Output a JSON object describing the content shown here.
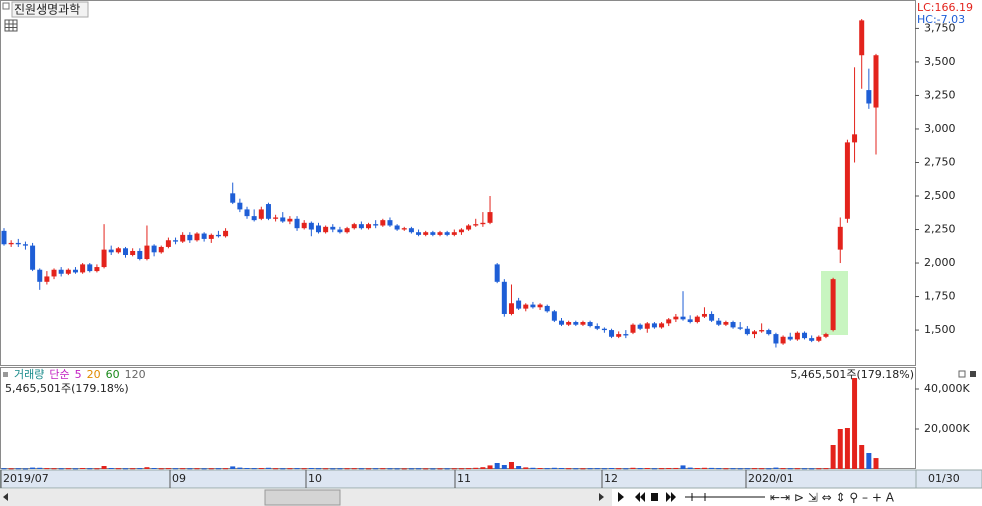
{
  "chart_data": {
    "type": "candlestick",
    "title": "진원생명과학",
    "lc_label": "LC:166.19",
    "hc_label": "HC:-7.03",
    "up_color": "#e3231c",
    "down_color": "#1e5ed6",
    "open": [
      2240,
      2140,
      2150,
      2140,
      2130,
      1950,
      1860,
      1900,
      1950,
      1920,
      1950,
      1930,
      1990,
      1940,
      1970,
      2100,
      2080,
      2110,
      2060,
      2090,
      2030,
      2130,
      2080,
      2120,
      2170,
      2160,
      2210,
      2170,
      2220,
      2180,
      2210,
      2200,
      2520,
      2450,
      2400,
      2350,
      2330,
      2440,
      2330,
      2340,
      2310,
      2330,
      2260,
      2300,
      2280,
      2230,
      2270,
      2250,
      2230,
      2260,
      2290,
      2260,
      2290,
      2280,
      2320,
      2280,
      2250,
      2260,
      2230,
      2210,
      2230,
      2210,
      2230,
      2210,
      2230,
      2250,
      2280,
      2290,
      2300,
      1990,
      1860,
      1620,
      1720,
      1660,
      1690,
      1670,
      1680,
      1640,
      1570,
      1540,
      1560,
      1540,
      1560,
      1530,
      1510,
      1500,
      1450,
      1470,
      1480,
      1540,
      1510,
      1550,
      1520,
      1550,
      1580,
      1600,
      1580,
      1560,
      1600,
      1620,
      1570,
      1540,
      1560,
      1520,
      1510,
      1470,
      1490,
      1500,
      1470,
      1400,
      1450,
      1430,
      1480,
      1440,
      1420,
      1450,
      1500,
      2100,
      2330,
      2900,
      3550,
      3290,
      3160
    ],
    "high": [
      2260,
      2170,
      2180,
      2160,
      2150,
      1960,
      1940,
      1960,
      1970,
      1960,
      1970,
      2000,
      2000,
      1990,
      2290,
      2130,
      2120,
      2120,
      2110,
      2110,
      2280,
      2140,
      2130,
      2190,
      2190,
      2230,
      2230,
      2230,
      2230,
      2220,
      2240,
      2260,
      2600,
      2480,
      2420,
      2400,
      2420,
      2450,
      2360,
      2380,
      2350,
      2350,
      2320,
      2310,
      2300,
      2280,
      2290,
      2270,
      2270,
      2300,
      2310,
      2300,
      2320,
      2330,
      2340,
      2290,
      2270,
      2270,
      2250,
      2240,
      2240,
      2240,
      2240,
      2250,
      2260,
      2290,
      2330,
      2380,
      2500,
      2000,
      1880,
      1840,
      1740,
      1700,
      1710,
      1700,
      1690,
      1650,
      1590,
      1570,
      1570,
      1570,
      1570,
      1550,
      1520,
      1510,
      1490,
      1500,
      1550,
      1550,
      1560,
      1560,
      1560,
      1590,
      1620,
      1790,
      1610,
      1610,
      1670,
      1640,
      1590,
      1570,
      1570,
      1560,
      1530,
      1500,
      1550,
      1510,
      1480,
      1460,
      1480,
      1490,
      1490,
      1460,
      1460,
      1480,
      1890,
      2340,
      2920,
      3460,
      3820,
      3450,
      3560
    ],
    "low": [
      2130,
      2120,
      2120,
      2100,
      1940,
      1800,
      1840,
      1880,
      1900,
      1910,
      1920,
      1920,
      1930,
      1930,
      1960,
      2060,
      2070,
      2040,
      2050,
      2020,
      2020,
      2050,
      2070,
      2110,
      2140,
      2150,
      2150,
      2160,
      2160,
      2150,
      2190,
      2190,
      2440,
      2380,
      2330,
      2310,
      2320,
      2320,
      2310,
      2300,
      2290,
      2240,
      2250,
      2200,
      2220,
      2220,
      2230,
      2220,
      2220,
      2250,
      2250,
      2250,
      2260,
      2270,
      2270,
      2240,
      2240,
      2220,
      2200,
      2200,
      2200,
      2200,
      2200,
      2200,
      2210,
      2240,
      2270,
      2270,
      2290,
      1850,
      1600,
      1610,
      1650,
      1640,
      1660,
      1650,
      1630,
      1560,
      1530,
      1530,
      1530,
      1530,
      1520,
      1500,
      1480,
      1440,
      1440,
      1440,
      1470,
      1500,
      1480,
      1510,
      1510,
      1530,
      1560,
      1570,
      1550,
      1550,
      1590,
      1560,
      1530,
      1530,
      1510,
      1500,
      1460,
      1440,
      1480,
      1460,
      1370,
      1390,
      1420,
      1420,
      1430,
      1410,
      1410,
      1440,
      1490,
      2000,
      2300,
      2750,
      3300,
      3150,
      2810
    ],
    "close": [
      2140,
      2150,
      2140,
      2130,
      1950,
      1860,
      1900,
      1950,
      1920,
      1950,
      1930,
      1990,
      1940,
      1970,
      2100,
      2080,
      2110,
      2060,
      2090,
      2030,
      2130,
      2080,
      2120,
      2170,
      2160,
      2210,
      2170,
      2220,
      2180,
      2210,
      2200,
      2240,
      2450,
      2400,
      2350,
      2320,
      2400,
      2330,
      2340,
      2310,
      2330,
      2260,
      2300,
      2250,
      2230,
      2270,
      2250,
      2230,
      2260,
      2290,
      2260,
      2290,
      2280,
      2320,
      2280,
      2250,
      2260,
      2230,
      2210,
      2230,
      2210,
      2230,
      2210,
      2230,
      2250,
      2280,
      2290,
      2300,
      2380,
      1860,
      1620,
      1700,
      1660,
      1690,
      1670,
      1690,
      1640,
      1570,
      1540,
      1560,
      1540,
      1560,
      1530,
      1510,
      1500,
      1450,
      1470,
      1460,
      1540,
      1510,
      1550,
      1520,
      1550,
      1580,
      1600,
      1580,
      1560,
      1600,
      1620,
      1570,
      1540,
      1560,
      1520,
      1510,
      1470,
      1490,
      1500,
      1470,
      1400,
      1450,
      1430,
      1480,
      1440,
      1420,
      1450,
      1470,
      1880,
      2270,
      2900,
      2960,
      3810,
      3190,
      3550
    ],
    "ylim": [
      1232,
      3962
    ],
    "yticks": [
      {
        "value": 1500,
        "label": "1,500"
      },
      {
        "value": 1750,
        "label": "1,750"
      },
      {
        "value": 2000,
        "label": "2,000"
      },
      {
        "value": 2250,
        "label": "2,250"
      },
      {
        "value": 2500,
        "label": "2,500"
      },
      {
        "value": 2750,
        "label": "2,750"
      },
      {
        "value": 3000,
        "label": "3,000"
      },
      {
        "value": 3250,
        "label": "3,250"
      },
      {
        "value": 3500,
        "label": "3,500"
      },
      {
        "value": 3750,
        "label": "3,750"
      }
    ],
    "volume": [
      400,
      350,
      380,
      300,
      700,
      600,
      450,
      400,
      380,
      420,
      350,
      500,
      400,
      380,
      1500,
      500,
      420,
      380,
      400,
      450,
      900,
      500,
      380,
      450,
      400,
      420,
      380,
      400,
      350,
      380,
      400,
      420,
      1300,
      700,
      500,
      450,
      480,
      600,
      400,
      380,
      420,
      450,
      400,
      500,
      420,
      380,
      350,
      380,
      400,
      420,
      380,
      360,
      400,
      420,
      380,
      350,
      330,
      360,
      380,
      340,
      330,
      350,
      360,
      380,
      400,
      450,
      600,
      900,
      1800,
      3000,
      2000,
      3500,
      1500,
      800,
      600,
      500,
      450,
      600,
      500,
      420,
      400,
      380,
      420,
      450,
      400,
      500,
      420,
      380,
      600,
      450,
      500,
      400,
      450,
      500,
      520,
      1800,
      700,
      500,
      600,
      550,
      450,
      400,
      420,
      380,
      400,
      450,
      420,
      380,
      700,
      450,
      400,
      420,
      380,
      360,
      400,
      450,
      12000,
      20000,
      20500,
      45500,
      12000,
      8000,
      5465.501
    ],
    "volume_ylim": [
      0,
      50500
    ],
    "volume_yticks": [
      {
        "value": 20000,
        "label": "20,000K"
      },
      {
        "value": 40000,
        "label": "40,000K"
      }
    ],
    "volume_legend": [
      "거래량",
      "단순",
      "5",
      "20",
      "60",
      "120"
    ],
    "volume_info": "5,465,501주(179.18%)",
    "x_labels": [
      "2019/07",
      "09",
      "10",
      "11",
      "12",
      "2020/01"
    ],
    "current_date": "01/30"
  }
}
